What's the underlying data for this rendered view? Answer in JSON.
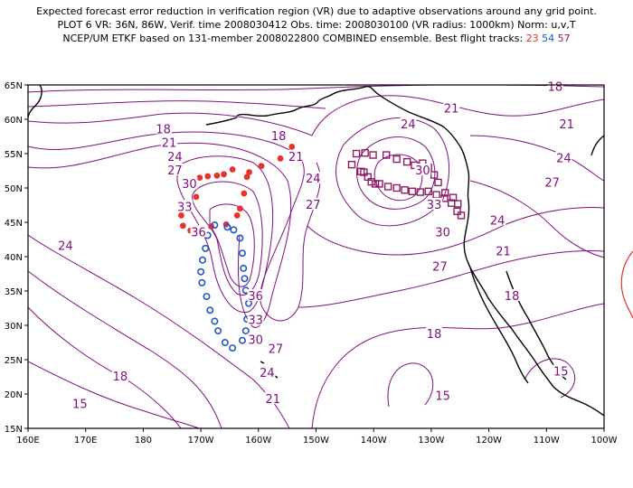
{
  "title": {
    "line1": "Expected forecast error reduction in verification region (VR) due to adaptive observations around any grid point.",
    "line2": "PLOT 6 VR: 36N, 86W, Verif. time 2008030412 Obs. time: 2008030100 (VR radius: 1000km) Norm: u,v,T",
    "line3_prefix": "NCEP/UM ETKF based on 131-member 2008022800 COMBINED ensemble.  Best flight tracks:",
    "track1": "23",
    "track2": "54",
    "track3": "57"
  },
  "map": {
    "lon_range": [
      160,
      260
    ],
    "lat_range": [
      15,
      65
    ],
    "x_ticks": [
      "160E",
      "170E",
      "180",
      "170W",
      "160W",
      "150W",
      "140W",
      "130W",
      "120W",
      "110W",
      "100W"
    ],
    "y_ticks": [
      "15N",
      "20N",
      "25N",
      "30N",
      "35N",
      "40N",
      "45N",
      "50N",
      "55N",
      "60N",
      "65N"
    ],
    "contour_color": "#801080",
    "contour_labels": [
      {
        "text": "18",
        "lon": 183.5,
        "lat": 58.5
      },
      {
        "text": "21",
        "lon": 184.5,
        "lat": 56.5
      },
      {
        "text": "24",
        "lon": 185.5,
        "lat": 54.5
      },
      {
        "text": "27",
        "lon": 185.5,
        "lat": 52.5
      },
      {
        "text": "30",
        "lon": 188,
        "lat": 50.5
      },
      {
        "text": "33",
        "lon": 187.2,
        "lat": 47.2
      },
      {
        "text": "36",
        "lon": 189.6,
        "lat": 43.5
      },
      {
        "text": "18",
        "lon": 203.5,
        "lat": 57.5
      },
      {
        "text": "21",
        "lon": 206.5,
        "lat": 54.5
      },
      {
        "text": "24",
        "lon": 209.5,
        "lat": 51.3
      },
      {
        "text": "27",
        "lon": 209.5,
        "lat": 47.5
      },
      {
        "text": "21",
        "lon": 233.5,
        "lat": 61.5
      },
      {
        "text": "24",
        "lon": 226,
        "lat": 59.2
      },
      {
        "text": "30",
        "lon": 228.5,
        "lat": 52.5
      },
      {
        "text": "33",
        "lon": 230.5,
        "lat": 47.5
      },
      {
        "text": "30",
        "lon": 232,
        "lat": 43.5
      },
      {
        "text": "27",
        "lon": 231.5,
        "lat": 38.5
      },
      {
        "text": "18",
        "lon": 251.5,
        "lat": 64.7
      },
      {
        "text": "21",
        "lon": 253.5,
        "lat": 59.2
      },
      {
        "text": "24",
        "lon": 253,
        "lat": 54.3
      },
      {
        "text": "27",
        "lon": 251,
        "lat": 50.7
      },
      {
        "text": "24",
        "lon": 241.5,
        "lat": 45.2
      },
      {
        "text": "21",
        "lon": 242.5,
        "lat": 40.7
      },
      {
        "text": "18",
        "lon": 244,
        "lat": 34.2
      },
      {
        "text": "18",
        "lon": 230.5,
        "lat": 28.7
      },
      {
        "text": "15",
        "lon": 232,
        "lat": 19.7
      },
      {
        "text": "15",
        "lon": 252.5,
        "lat": 23.2
      },
      {
        "text": "24",
        "lon": 166.5,
        "lat": 41.5
      },
      {
        "text": "18",
        "lon": 176,
        "lat": 22.5
      },
      {
        "text": "15",
        "lon": 169,
        "lat": 18.5
      },
      {
        "text": "36",
        "lon": 199.5,
        "lat": 34.2
      },
      {
        "text": "33",
        "lon": 199.5,
        "lat": 30.7
      },
      {
        "text": "30",
        "lon": 199.5,
        "lat": 27.8
      },
      {
        "text": "27",
        "lon": 203,
        "lat": 26.5
      },
      {
        "text": "24",
        "lon": 201.5,
        "lat": 23.0
      },
      {
        "text": "21",
        "lon": 202.5,
        "lat": 19.2
      }
    ],
    "tracks": [
      {
        "name": "23",
        "color": "#e8322c",
        "marker": "dot",
        "points": [
          [
            205.8,
            56.0
          ],
          [
            203.8,
            54.3
          ],
          [
            200.5,
            53.2
          ],
          [
            198.4,
            52.3
          ],
          [
            195.5,
            52.7
          ],
          [
            194,
            52.0
          ],
          [
            192.8,
            51.8
          ],
          [
            191.2,
            51.7
          ],
          [
            189.8,
            51.5
          ],
          [
            189.2,
            48.7
          ],
          [
            187.4,
            47.6
          ],
          [
            186.6,
            46.0
          ],
          [
            186.9,
            44.5
          ],
          [
            188.2,
            43.8
          ],
          [
            191.8,
            44.4
          ],
          [
            194.4,
            44.7
          ],
          [
            196.3,
            46.0
          ],
          [
            196.8,
            47.0
          ],
          [
            197.5,
            49.2
          ],
          [
            198.0,
            51.6
          ]
        ]
      },
      {
        "name": "54",
        "color": "#2356c8",
        "marker": "ring",
        "points": [
          [
            192.4,
            44.6
          ],
          [
            191.2,
            43.1
          ],
          [
            190.8,
            41.2
          ],
          [
            190.3,
            39.5
          ],
          [
            190.0,
            37.8
          ],
          [
            190.2,
            36.2
          ],
          [
            191.0,
            34.2
          ],
          [
            191.6,
            32.2
          ],
          [
            192.4,
            30.6
          ],
          [
            193.0,
            29.2
          ],
          [
            194.2,
            27.5
          ],
          [
            195.5,
            26.7
          ],
          [
            197.2,
            27.8
          ],
          [
            197.8,
            29.2
          ],
          [
            198.0,
            30.9
          ],
          [
            198.7,
            31.1
          ],
          [
            198.3,
            33.2
          ],
          [
            197.8,
            35.1
          ],
          [
            197.6,
            36.8
          ],
          [
            197.4,
            38.3
          ],
          [
            197.2,
            40.5
          ],
          [
            196.8,
            42.7
          ],
          [
            195.7,
            43.9
          ],
          [
            194.6,
            44.3
          ]
        ]
      },
      {
        "name": "57",
        "color": "#8c1c64",
        "marker": "square",
        "points": [
          [
            216.2,
            53.4
          ],
          [
            217.8,
            52.4
          ],
          [
            218.3,
            52.3
          ],
          [
            219.0,
            51.6
          ],
          [
            219.6,
            50.9
          ],
          [
            220.3,
            50.6
          ],
          [
            221.0,
            50.6
          ],
          [
            222.5,
            50.2
          ],
          [
            224.0,
            50.0
          ],
          [
            225.4,
            49.7
          ],
          [
            226.7,
            49.5
          ],
          [
            228.1,
            49.4
          ],
          [
            229.5,
            49.5
          ],
          [
            230.9,
            49.0
          ],
          [
            232.3,
            48.5
          ],
          [
            233.5,
            47.8
          ],
          [
            234.5,
            46.6
          ],
          [
            235.2,
            46.0
          ],
          [
            234.6,
            47.7
          ],
          [
            233.8,
            48.6
          ],
          [
            232.4,
            49.3
          ],
          [
            231.2,
            50.8
          ],
          [
            230.5,
            51.9
          ],
          [
            229.5,
            53.0
          ],
          [
            228.5,
            53.6
          ],
          [
            227.1,
            53.3
          ],
          [
            225.8,
            53.8
          ],
          [
            224.0,
            54.2
          ],
          [
            222.2,
            54.8
          ],
          [
            219.9,
            54.8
          ],
          [
            218.5,
            55.1
          ],
          [
            217.0,
            55.0
          ]
        ]
      }
    ]
  }
}
